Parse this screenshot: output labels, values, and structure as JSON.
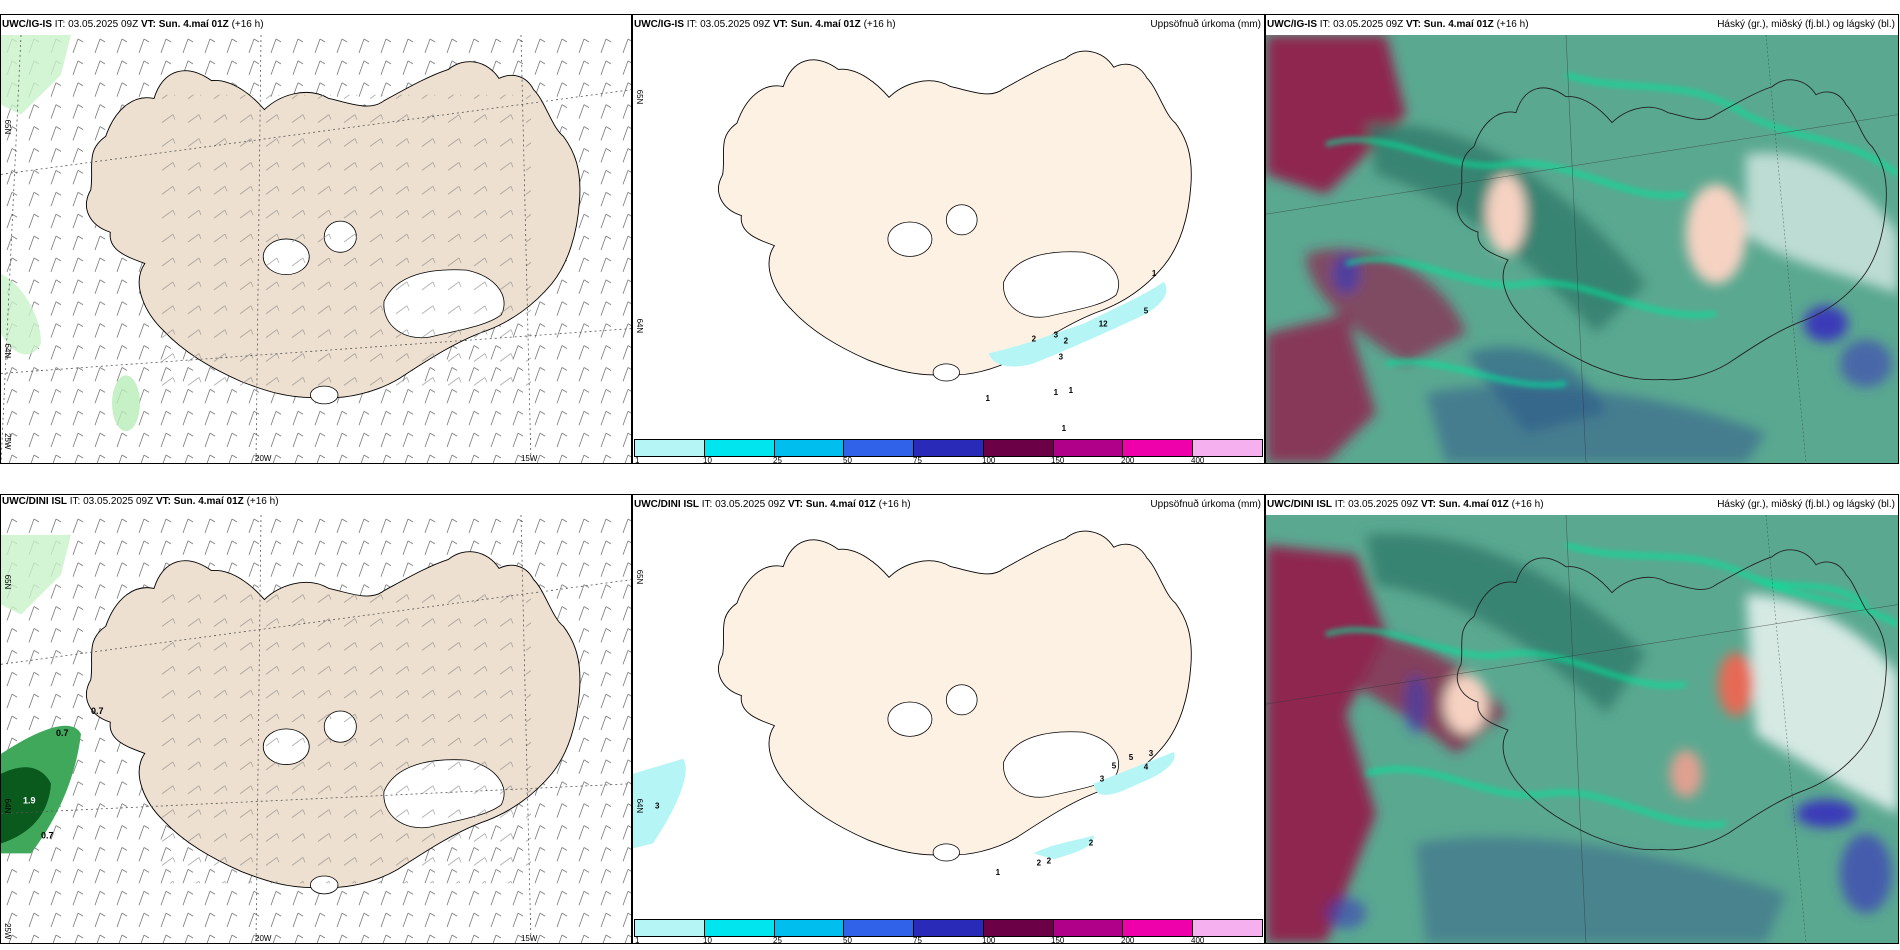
{
  "panels": [
    {
      "id": "wind-is",
      "model_bold": "UWC/IG-IS",
      "it_prefix": "IT:",
      "it_value": "03.05.2025 09Z",
      "vt_prefix": "VT:",
      "vt_value": "Sun. 4.maí 01Z",
      "lead": "(+16 h)",
      "right_title": "",
      "labels": {
        "lat1": "65N",
        "lat2": "64N",
        "lat3": "25W",
        "lon1": "20W",
        "lon2": "15W"
      }
    },
    {
      "id": "precip-is",
      "model_bold": "UWC/IG-IS",
      "it_prefix": "IT:",
      "it_value": "03.05.2025 09Z",
      "vt_prefix": "VT:",
      "vt_value": "Sun. 4.maí 01Z",
      "lead": "(+16 h)",
      "right_title": "Uppsöfnuð úrkoma (mm)",
      "labels": {
        "lat1": "65N",
        "lat2": "64N"
      },
      "precip_labels": [
        "1",
        "12",
        "5",
        "3",
        "2",
        "2",
        "3",
        "1",
        "1",
        "1",
        "1"
      ]
    },
    {
      "id": "cloud-is",
      "model_bold": "UWC/IG-IS",
      "it_prefix": "IT:",
      "it_value": "03.05.2025 09Z",
      "vt_prefix": "VT:",
      "vt_value": "Sun. 4.maí 01Z",
      "lead": "(+16 h)",
      "right_title": "Háský (gr.), miðský (fj.bl.) og lágský (bl.)"
    },
    {
      "id": "wind-dini",
      "model_bold": "UWC/DINI ISL",
      "it_prefix": "IT:",
      "it_value": "03.05.2025 09Z",
      "vt_prefix": "VT:",
      "vt_value": "Sun. 4.maí 01Z",
      "lead": "(+16 h)",
      "right_title": "",
      "labels": {
        "lat1": "65N",
        "lat2": "64N",
        "lat3": "25W",
        "lon1": "20W",
        "lon2": "15W"
      },
      "contour_labels": [
        "0.7",
        "0.7",
        "1.9",
        "0.7"
      ]
    },
    {
      "id": "precip-dini",
      "model_bold": "UWC/DINI ISL",
      "it_prefix": "IT:",
      "it_value": "03.05.2025 09Z",
      "vt_prefix": "VT:",
      "vt_value": "Sun. 4.maí 01Z",
      "lead": "(+16 h)",
      "right_title": "Uppsöfnuð úrkoma (mm)",
      "labels": {
        "lat1": "65N",
        "lat2": "64N"
      },
      "precip_labels": [
        "3",
        "3",
        "5",
        "5",
        "4",
        "3",
        "2",
        "2",
        "2",
        "1"
      ]
    },
    {
      "id": "cloud-dini",
      "model_bold": "UWC/DINI ISL",
      "it_prefix": "IT:",
      "it_value": "03.05.2025 09Z",
      "vt_prefix": "VT:",
      "vt_value": "Sun. 4.maí 01Z",
      "lead": "(+16 h)",
      "right_title": "Háský (gr.), miðský (fj.bl.) og lágský (bl.)"
    }
  ],
  "colorbar": {
    "ticks": [
      "1",
      "10",
      "25",
      "50",
      "75",
      "100",
      "150",
      "200",
      "400"
    ],
    "colors": [
      "#b6f5f5",
      "#00e5ee",
      "#00bfee",
      "#2f62e8",
      "#2a2ab8",
      "#6b0046",
      "#b0008a",
      "#ee00aa",
      "#f5b0f0"
    ]
  },
  "colors": {
    "land_wind": "#eee0d0",
    "land_precip": "#fdf1e4",
    "precip_light": "#b6f5f5",
    "cloud_high": "#5aa890",
    "cloud_mid": "#8e2550",
    "cloud_low": "#3a3ab8"
  }
}
